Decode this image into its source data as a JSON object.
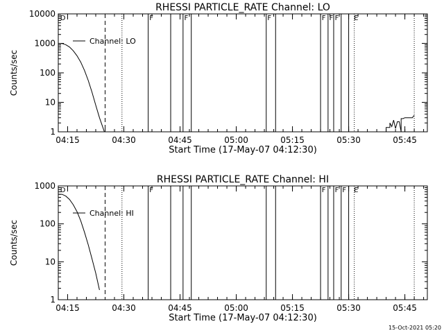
{
  "footer_timestamp": "15-Oct-2021 05:20",
  "chart_data": [
    {
      "type": "line",
      "title": "RHESSI PARTICLE_RATE Channel: LO",
      "xlabel": "Start Time (17-May-07 04:12:30)",
      "ylabel": "Counts/sec",
      "yscale": "log",
      "ylim": [
        1,
        10000
      ],
      "xlim_minutes": [
        0,
        98.5
      ],
      "x_ticks": [
        {
          "minute": 2.5,
          "label": "04:15"
        },
        {
          "minute": 17.5,
          "label": "04:30"
        },
        {
          "minute": 32.5,
          "label": "04:45"
        },
        {
          "minute": 47.5,
          "label": "05:00"
        },
        {
          "minute": 62.5,
          "label": "05:15"
        },
        {
          "minute": 77.5,
          "label": "05:30"
        },
        {
          "minute": 92.5,
          "label": "05:45"
        }
      ],
      "y_ticks": [
        {
          "value": 1,
          "label": "1"
        },
        {
          "value": 10,
          "label": "10"
        },
        {
          "value": 100,
          "label": "100"
        },
        {
          "value": 1000,
          "label": "1000"
        },
        {
          "value": 10000,
          "label": "10000"
        }
      ],
      "legend": {
        "label": "Channel: LO",
        "placement": "top-left"
      },
      "series": [
        {
          "name": "Channel: LO",
          "x": [
            0,
            1,
            2,
            3,
            4,
            5,
            6,
            7,
            8,
            9,
            10,
            11,
            12,
            12.3
          ],
          "y": [
            1000,
            990,
            900,
            750,
            560,
            380,
            230,
            120,
            55,
            22,
            8,
            3,
            1.3,
            1.0
          ]
        },
        {
          "name": "Channel: LO (late)",
          "x": [
            87.5,
            87.5,
            88.5,
            88.5,
            89,
            89.5,
            90,
            90.5,
            91,
            91.5,
            91.5,
            92,
            92.5,
            94.5,
            94.8,
            95
          ],
          "y": [
            1.0,
            1.4,
            1.4,
            2.0,
            1.5,
            2.5,
            1.3,
            2.2,
            2.2,
            1.0,
            2.8,
            2.8,
            3.0,
            3.0,
            3.4,
            3.6
          ]
        }
      ],
      "markers": {
        "dashed": [
          12.5
        ],
        "dotted": [
          17.0,
          79.0,
          95.0
        ],
        "solid": [
          24.0,
          30.0,
          33.3,
          35.5,
          55.5,
          58.0,
          70.0,
          72.0,
          73.5,
          75.5,
          77.5
        ]
      },
      "flags": [
        {
          "minute": 0.5,
          "label": "D"
        },
        {
          "minute": 24.3,
          "label": "F"
        },
        {
          "minute": 33.6,
          "label": "F"
        },
        {
          "minute": 55.8,
          "label": "F"
        },
        {
          "minute": 70.3,
          "label": "F"
        },
        {
          "minute": 72.3,
          "label": "F"
        },
        {
          "minute": 73.8,
          "label": "F"
        },
        {
          "minute": 78.9,
          "label": "E"
        }
      ]
    },
    {
      "type": "line",
      "title": "RHESSI PARTICLE_RATE Channel: HI",
      "xlabel": "Start Time (17-May-07 04:12:30)",
      "ylabel": "Counts/sec",
      "yscale": "log",
      "ylim": [
        1,
        1000
      ],
      "xlim_minutes": [
        0,
        98.5
      ],
      "x_ticks": [
        {
          "minute": 2.5,
          "label": "04:15"
        },
        {
          "minute": 17.5,
          "label": "04:30"
        },
        {
          "minute": 32.5,
          "label": "04:45"
        },
        {
          "minute": 47.5,
          "label": "05:00"
        },
        {
          "minute": 62.5,
          "label": "05:15"
        },
        {
          "minute": 77.5,
          "label": "05:30"
        },
        {
          "minute": 92.5,
          "label": "05:45"
        }
      ],
      "y_ticks": [
        {
          "value": 1,
          "label": "1"
        },
        {
          "value": 10,
          "label": "10"
        },
        {
          "value": 100,
          "label": "100"
        },
        {
          "value": 1000,
          "label": "1000"
        }
      ],
      "legend": {
        "label": "Channel: HI",
        "placement": "top-left"
      },
      "series": [
        {
          "name": "Channel: HI",
          "x": [
            0,
            1,
            2,
            3,
            4,
            5,
            6,
            7,
            8,
            9,
            10,
            10.5,
            11
          ],
          "y": [
            600,
            600,
            540,
            440,
            320,
            210,
            120,
            60,
            28,
            12,
            5,
            3,
            1.8
          ]
        }
      ],
      "markers": {
        "dashed": [
          12.5
        ],
        "dotted": [
          17.0,
          79.0,
          95.0
        ],
        "solid": [
          24.0,
          30.0,
          33.3,
          35.5,
          55.5,
          58.0,
          70.0,
          72.0,
          73.5,
          75.5,
          77.5
        ]
      },
      "flags": [
        {
          "minute": 0.5,
          "label": "D"
        },
        {
          "minute": 24.3,
          "label": "F"
        },
        {
          "minute": 70.3,
          "label": "F"
        },
        {
          "minute": 73.8,
          "label": "F"
        },
        {
          "minute": 75.8,
          "label": "F"
        },
        {
          "minute": 78.9,
          "label": "E"
        }
      ]
    }
  ]
}
